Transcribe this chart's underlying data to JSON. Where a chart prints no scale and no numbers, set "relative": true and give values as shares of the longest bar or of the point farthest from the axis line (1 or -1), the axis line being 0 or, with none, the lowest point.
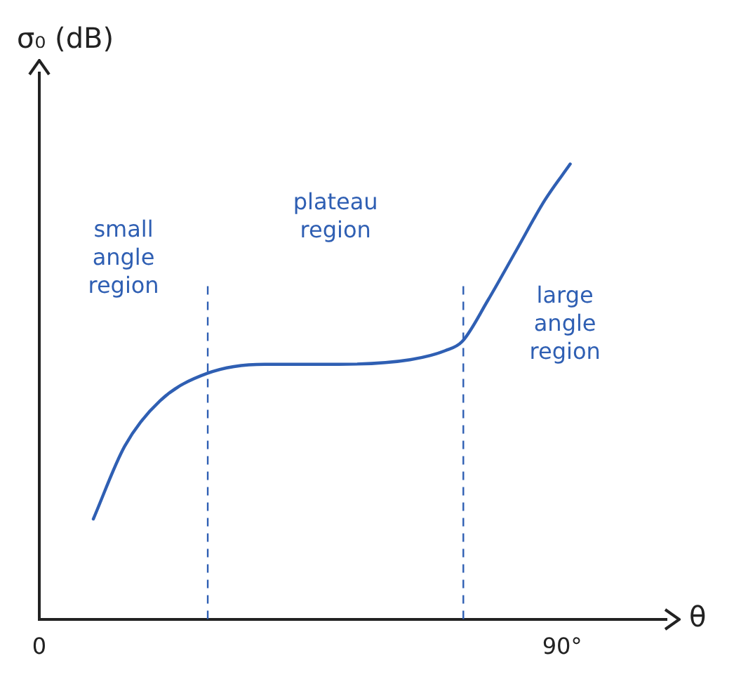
{
  "chart_data": {
    "type": "line",
    "ylabel": "σ₀ (dB)",
    "xlabel": "θ",
    "relative": true,
    "x": [
      9.3,
      14.7,
      20.8,
      28.9,
      38.8,
      51.5,
      63.8,
      69.9,
      72.8,
      77.2,
      82.1,
      87,
      91.4
    ],
    "series": [
      {
        "color": "#2f5fb3",
        "values": [
          0.22,
          0.38,
          0.48,
          0.54,
          0.56,
          0.56,
          0.57,
          0.59,
          0.61,
          0.7,
          0.81,
          0.92,
          1.0
        ]
      }
    ],
    "xlim": [
      0,
      108
    ],
    "xticks": [
      0,
      {
        "value": 90,
        "label": "90°"
      }
    ],
    "ref_lines": [
      {
        "axis": "x",
        "value": 29,
        "color": "#2f5fb3",
        "line_style": "dashed"
      },
      {
        "axis": "x",
        "value": 73,
        "color": "#2f5fb3",
        "line_style": "dashed"
      }
    ],
    "annotations": [
      "small angle region",
      "plateau region",
      "large angle region"
    ],
    "grid": false,
    "legend": false,
    "marker": "none",
    "line_style": "solid"
  }
}
